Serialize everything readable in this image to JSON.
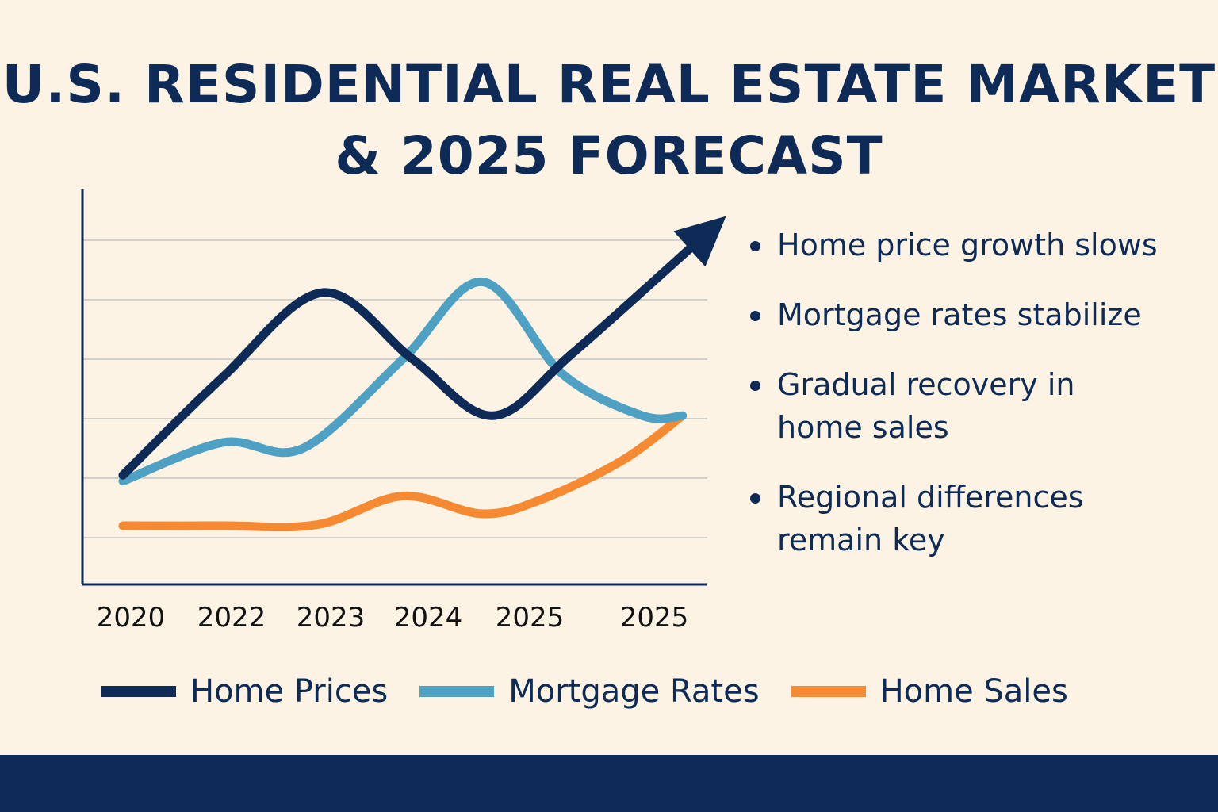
{
  "colors": {
    "background": "#fcf3e4",
    "navy": "#0d2b56",
    "grid": "#d2d0cb"
  },
  "chart_data": {
    "type": "line",
    "title_lines": [
      "U.S. RESIDENTIAL REAL ESTATE MARKET",
      "& 2025 FORECAST"
    ],
    "categories": [
      "2020",
      "2022",
      "2023",
      "2024",
      "2025",
      "2025"
    ],
    "xlabel": "",
    "ylabel": "",
    "ylim": [
      0,
      8
    ],
    "grid": true,
    "legend_position": "bottom",
    "series": [
      {
        "name": "Home Prices",
        "color": "#0d2b56",
        "points": [
          [
            0.0,
            2.05
          ],
          [
            1.0,
            3.7
          ],
          [
            2.0,
            5.12
          ],
          [
            2.9,
            4.0
          ],
          [
            3.7,
            3.05
          ],
          [
            4.5,
            4.1
          ],
          [
            5.8,
            6.05
          ]
        ],
        "end_arrow": true
      },
      {
        "name": "Mortgage Rates",
        "color": "#4fa1c3",
        "points": [
          [
            0.0,
            1.95
          ],
          [
            1.0,
            2.6
          ],
          [
            1.8,
            2.5
          ],
          [
            2.8,
            4.0
          ],
          [
            3.6,
            5.3
          ],
          [
            4.4,
            3.75
          ],
          [
            5.2,
            3.05
          ],
          [
            5.6,
            3.05
          ]
        ]
      },
      {
        "name": "Home Sales",
        "color": "#f68a33",
        "points": [
          [
            0.0,
            1.2
          ],
          [
            1.0,
            1.2
          ],
          [
            1.95,
            1.22
          ],
          [
            2.8,
            1.7
          ],
          [
            3.6,
            1.4
          ],
          [
            4.2,
            1.65
          ],
          [
            5.0,
            2.3
          ],
          [
            5.6,
            3.05
          ]
        ]
      }
    ]
  },
  "bullets": [
    "Home price growth slows",
    "Mortgage rates stabilize",
    "Gradual recovery in home sales",
    "Regional differences remain key"
  ]
}
